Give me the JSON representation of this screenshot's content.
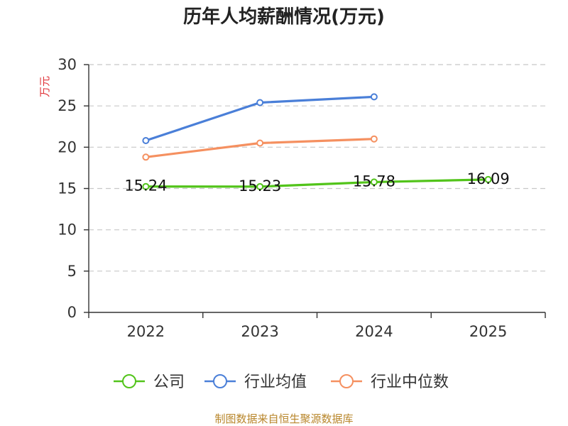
{
  "chart_data": {
    "type": "line",
    "title": "历年人均薪酬情况(万元)",
    "ylabel": "万元",
    "categories": [
      "2022",
      "2023",
      "2024",
      "2025"
    ],
    "ylim": [
      0,
      30
    ],
    "yticks": [
      0,
      5,
      10,
      15,
      20,
      25,
      30
    ],
    "grid": true,
    "legend_position": "bottom",
    "series": [
      {
        "name": "公司",
        "color": "#52c41a",
        "values": [
          15.24,
          15.23,
          15.78,
          16.09
        ],
        "labels": [
          "15.24",
          "15.23",
          "15.78",
          "16.09"
        ]
      },
      {
        "name": "行业均值",
        "color": "#4a7fd8",
        "values": [
          20.8,
          25.4,
          26.1,
          null
        ]
      },
      {
        "name": "行业中位数",
        "color": "#f59060",
        "values": [
          18.8,
          20.5,
          21.0,
          null
        ]
      }
    ]
  },
  "footer": {
    "source": "制图数据来自恒生聚源数据库"
  }
}
